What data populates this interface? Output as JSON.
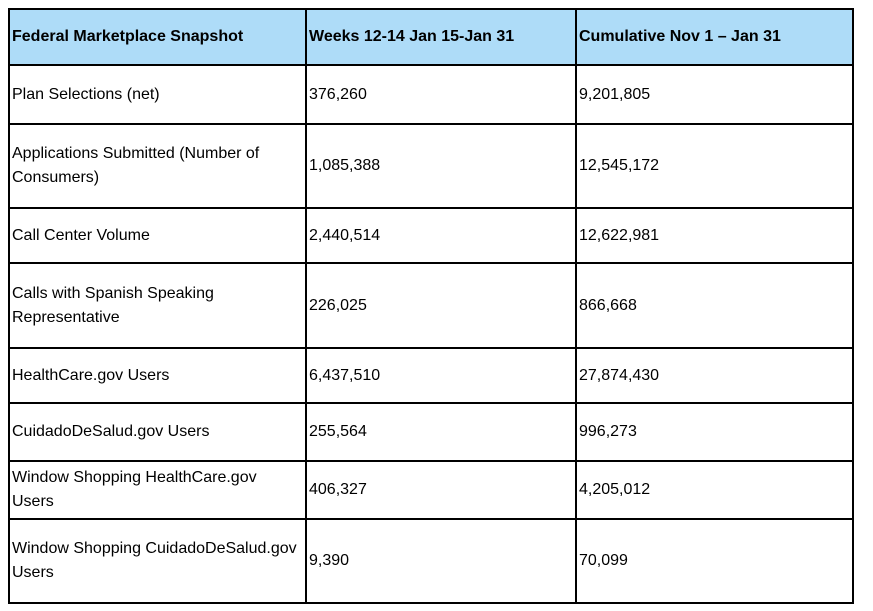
{
  "colors": {
    "header_bg": "#aedcf8",
    "border": "#000000",
    "text": "#000000",
    "page_bg": "#ffffff"
  },
  "table": {
    "title": "Federal Marketplace Snapshot",
    "columns": [
      {
        "label": "Federal Marketplace Snapshot"
      },
      {
        "label": "Weeks 12-14 Jan 15-Jan 31"
      },
      {
        "label": "Cumulative Nov 1 – Jan 31"
      }
    ],
    "rows": [
      {
        "metric": "Plan Selections (net)",
        "weeks": "376,260",
        "cumulative": "9,201,805"
      },
      {
        "metric": "Applications Submitted (Number of Consumers)",
        "weeks": "1,085,388",
        "cumulative": "12,545,172"
      },
      {
        "metric": "Call Center Volume",
        "weeks": "2,440,514",
        "cumulative": "12,622,981"
      },
      {
        "metric": "Calls with Spanish Speaking Representative",
        "weeks": "226,025",
        "cumulative": "866,668"
      },
      {
        "metric": "HealthCare.gov Users",
        "weeks": "6,437,510",
        "cumulative": "27,874,430"
      },
      {
        "metric": "CuidadoDeSalud.gov Users",
        "weeks": "255,564",
        "cumulative": "996,273"
      },
      {
        "metric": "Window Shopping HealthCare.gov Users",
        "weeks": "406,327",
        "cumulative": "4,205,012"
      },
      {
        "metric": "Window Shopping CuidadoDeSalud.gov Users",
        "weeks": "9,390",
        "cumulative": "70,099"
      }
    ]
  }
}
